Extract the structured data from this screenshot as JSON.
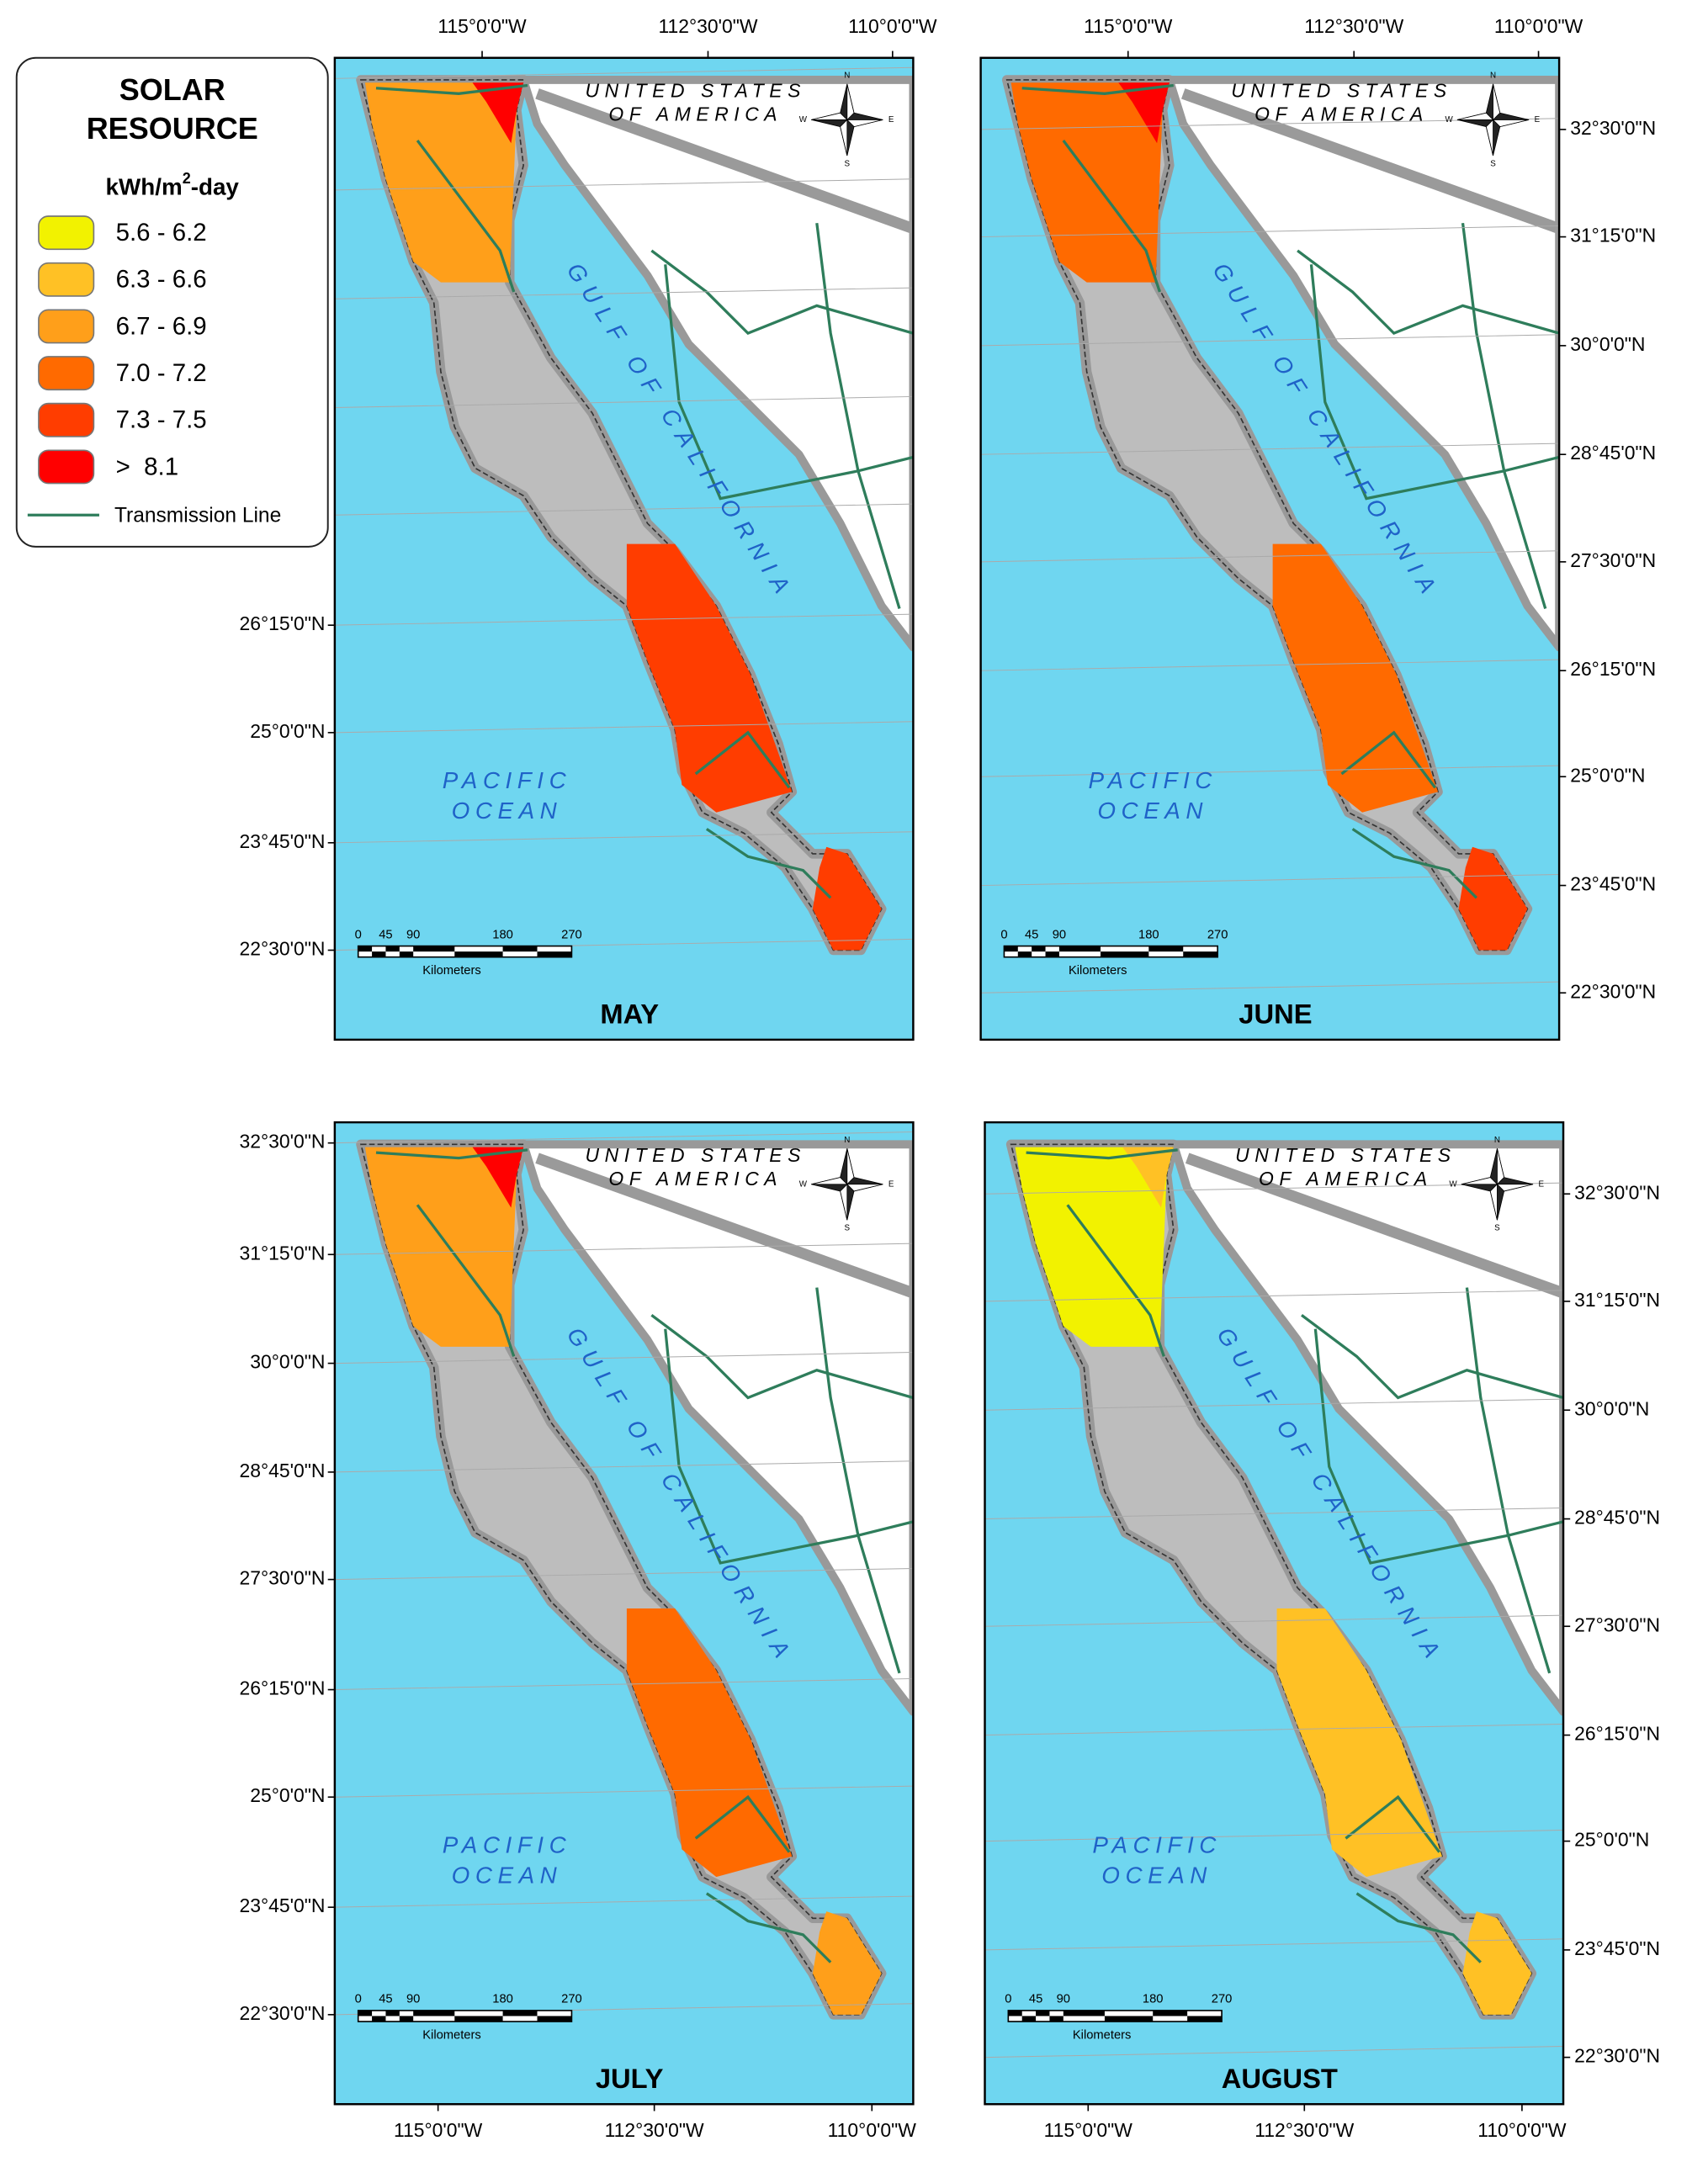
{
  "legend": {
    "title_lines": [
      "SOLAR",
      "RESOURCE"
    ],
    "unit": {
      "base": "kWh/m",
      "sup": "2",
      "rest": "-day"
    },
    "classes": [
      {
        "label": "5.6 - 6.2",
        "color": "#f2f200"
      },
      {
        "label": "6.3 - 6.6",
        "color": "#ffc125"
      },
      {
        "label": "6.7 - 6.9",
        "color": "#ff9f1a"
      },
      {
        "label": "7.0 - 7.2",
        "color": "#ff6a00"
      },
      {
        "label": "7.3 - 7.5",
        "color": "#ff3d00"
      },
      {
        "label": ">  8.1",
        "color": "#ff0000"
      }
    ],
    "line_label": "Transmission Line",
    "line_color": "#2e7d5b"
  },
  "map_labels": {
    "country": [
      "UNITED STATES",
      "OF AMERICA"
    ],
    "gulf": "GULF OF CALIFORNIA",
    "ocean": [
      "PACIFIC",
      "OCEAN"
    ],
    "scale_ticks": [
      "0",
      "45",
      "90",
      "180",
      "270"
    ],
    "scale_unit": "Kilometers",
    "compass": {
      "n": "N",
      "s": "S",
      "e": "E",
      "w": "W"
    }
  },
  "panels": [
    {
      "month": "MAY",
      "lat_labels": [
        "26°15'0\"N",
        "25°0'0\"N",
        "23°45'0\"N",
        "22°30'0\"N"
      ],
      "lon_labels": [
        "115°0'0\"W",
        "112°30'0\"W",
        "110°0'0\"W"
      ],
      "north_color": "#ff9f1a",
      "accent_color": "#ff0000",
      "south_color": "#ff3d00",
      "cape_color": "#ff3d00"
    },
    {
      "month": "JUNE",
      "lat_labels": [
        "32°30'0\"N",
        "31°15'0\"N",
        "30°0'0\"N",
        "28°45'0\"N",
        "27°30'0\"N",
        "26°15'0\"N",
        "25°0'0\"N",
        "23°45'0\"N",
        "22°30'0\"N"
      ],
      "lon_labels": [
        "115°0'0\"W",
        "112°30'0\"W",
        "110°0'0\"W"
      ],
      "north_color": "#ff6a00",
      "accent_color": "#ff0000",
      "south_color": "#ff6a00",
      "cape_color": "#ff3d00"
    },
    {
      "month": "JULY",
      "lat_labels": [
        "32°30'0\"N",
        "31°15'0\"N",
        "30°0'0\"N",
        "28°45'0\"N",
        "27°30'0\"N",
        "26°15'0\"N",
        "25°0'0\"N",
        "23°45'0\"N",
        "22°30'0\"N"
      ],
      "lon_labels": [
        "115°0'0\"W",
        "112°30'0\"W",
        "110°0'0\"W"
      ],
      "north_color": "#ff9f1a",
      "accent_color": "#ff0000",
      "south_color": "#ff6a00",
      "cape_color": "#ff9f1a"
    },
    {
      "month": "AUGUST",
      "lat_labels": [
        "32°30'0\"N",
        "31°15'0\"N",
        "30°0'0\"N",
        "28°45'0\"N",
        "27°30'0\"N",
        "26°15'0\"N",
        "25°0'0\"N",
        "23°45'0\"N",
        "22°30'0\"N"
      ],
      "lon_labels": [
        "115°0'0\"W",
        "112°30'0\"W",
        "110°0'0\"W"
      ],
      "north_color": "#f2f200",
      "accent_color": "#ffc125",
      "south_color": "#ffc125",
      "cape_color": "#ffc125"
    }
  ]
}
